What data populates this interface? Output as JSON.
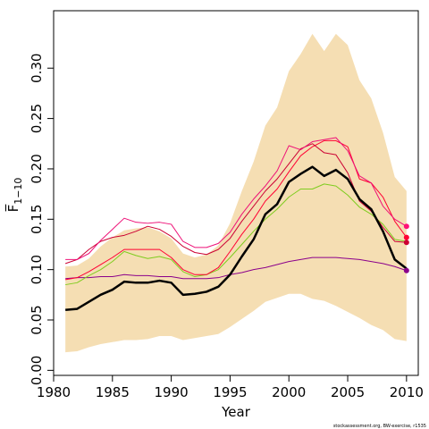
{
  "chart_data": {
    "type": "line",
    "xlabel": "Year",
    "ylabel": "F̅",
    "ylabel_subscript": "1−10",
    "credit": "stockassessment.org, BW-exercise, r1535",
    "xlim": [
      1980,
      2011
    ],
    "ylim": [
      -0.005,
      0.357
    ],
    "xticks": [
      1980,
      1985,
      1990,
      1995,
      2000,
      2005,
      2010
    ],
    "yticks": [
      0.0,
      0.05,
      0.1,
      0.15,
      0.2,
      0.25,
      0.3
    ],
    "ytick_labels": [
      "0.00",
      "0.05",
      "0.10",
      "0.15",
      "0.20",
      "0.25",
      "0.30"
    ],
    "x": [
      1981,
      1982,
      1983,
      1984,
      1985,
      1986,
      1987,
      1988,
      1989,
      1990,
      1991,
      1992,
      1993,
      1994,
      1995,
      1996,
      1997,
      1998,
      1999,
      2000,
      2001,
      2002,
      2003,
      2004,
      2005,
      2006,
      2007,
      2008,
      2009,
      2010
    ],
    "band": {
      "color": "#f5deb3",
      "lower": [
        0.018,
        0.019,
        0.023,
        0.026,
        0.028,
        0.03,
        0.03,
        0.031,
        0.034,
        0.034,
        0.03,
        0.032,
        0.034,
        0.036,
        0.043,
        0.051,
        0.059,
        0.068,
        0.072,
        0.076,
        0.076,
        0.071,
        0.069,
        0.064,
        0.058,
        0.052,
        0.045,
        0.04,
        0.031,
        0.029
      ],
      "upper": [
        0.103,
        0.104,
        0.111,
        0.123,
        0.132,
        0.139,
        0.141,
        0.142,
        0.138,
        0.131,
        0.116,
        0.112,
        0.115,
        0.124,
        0.146,
        0.178,
        0.207,
        0.243,
        0.261,
        0.297,
        0.314,
        0.334,
        0.317,
        0.334,
        0.323,
        0.288,
        0.27,
        0.236,
        0.192,
        0.178
      ]
    },
    "series": [
      {
        "color": "#000000",
        "width": 2.5,
        "values": [
          0.06,
          0.061,
          0.068,
          0.075,
          0.08,
          0.088,
          0.087,
          0.087,
          0.089,
          0.087,
          0.075,
          0.076,
          0.078,
          0.083,
          0.095,
          0.113,
          0.13,
          0.155,
          0.165,
          0.187,
          0.195,
          0.202,
          0.193,
          0.199,
          0.19,
          0.17,
          0.16,
          0.138,
          0.11,
          0.101
        ]
      },
      {
        "color": "#8b008b",
        "width": 1,
        "values": [
          0.091,
          0.092,
          0.092,
          0.093,
          0.093,
          0.095,
          0.094,
          0.094,
          0.093,
          0.093,
          0.091,
          0.091,
          0.091,
          0.092,
          0.095,
          0.097,
          0.1,
          0.102,
          0.105,
          0.108,
          0.11,
          0.112,
          0.112,
          0.112,
          0.111,
          0.11,
          0.108,
          0.106,
          0.103,
          0.099
        ],
        "end_marker": "#8b008b"
      },
      {
        "color": "#7fcc1f",
        "width": 1,
        "values": [
          0.085,
          0.087,
          0.094,
          0.1,
          0.108,
          0.118,
          0.114,
          0.111,
          0.113,
          0.11,
          0.098,
          0.093,
          0.095,
          0.1,
          0.112,
          0.125,
          0.138,
          0.15,
          0.16,
          0.172,
          0.18,
          0.18,
          0.185,
          0.183,
          0.174,
          0.162,
          0.155,
          0.145,
          0.13,
          0.128
        ]
      },
      {
        "color": "#ff0033",
        "width": 1,
        "values": [
          0.09,
          0.092,
          0.098,
          0.105,
          0.112,
          0.12,
          0.12,
          0.12,
          0.12,
          0.112,
          0.1,
          0.095,
          0.095,
          0.102,
          0.118,
          0.135,
          0.15,
          0.168,
          0.18,
          0.197,
          0.213,
          0.222,
          0.228,
          0.228,
          0.222,
          0.19,
          0.186,
          0.172,
          0.148,
          0.132
        ],
        "end_marker": "#ff0033"
      },
      {
        "color": "#cc0033",
        "width": 1,
        "values": [
          0.106,
          0.11,
          0.12,
          0.128,
          0.132,
          0.134,
          0.138,
          0.143,
          0.14,
          0.133,
          0.123,
          0.117,
          0.115,
          0.12,
          0.131,
          0.148,
          0.163,
          0.178,
          0.19,
          0.205,
          0.22,
          0.225,
          0.216,
          0.214,
          0.196,
          0.168,
          0.158,
          0.142,
          0.128,
          0.127
        ],
        "end_marker": "#cc0033"
      },
      {
        "color": "#ee1177",
        "width": 1,
        "values": [
          0.11,
          0.11,
          0.116,
          0.129,
          0.14,
          0.151,
          0.147,
          0.146,
          0.147,
          0.145,
          0.128,
          0.122,
          0.122,
          0.126,
          0.137,
          0.155,
          0.17,
          0.183,
          0.198,
          0.223,
          0.219,
          0.227,
          0.229,
          0.231,
          0.218,
          0.193,
          0.186,
          0.163,
          0.15,
          0.143
        ],
        "end_marker": "#ff1177"
      }
    ]
  }
}
